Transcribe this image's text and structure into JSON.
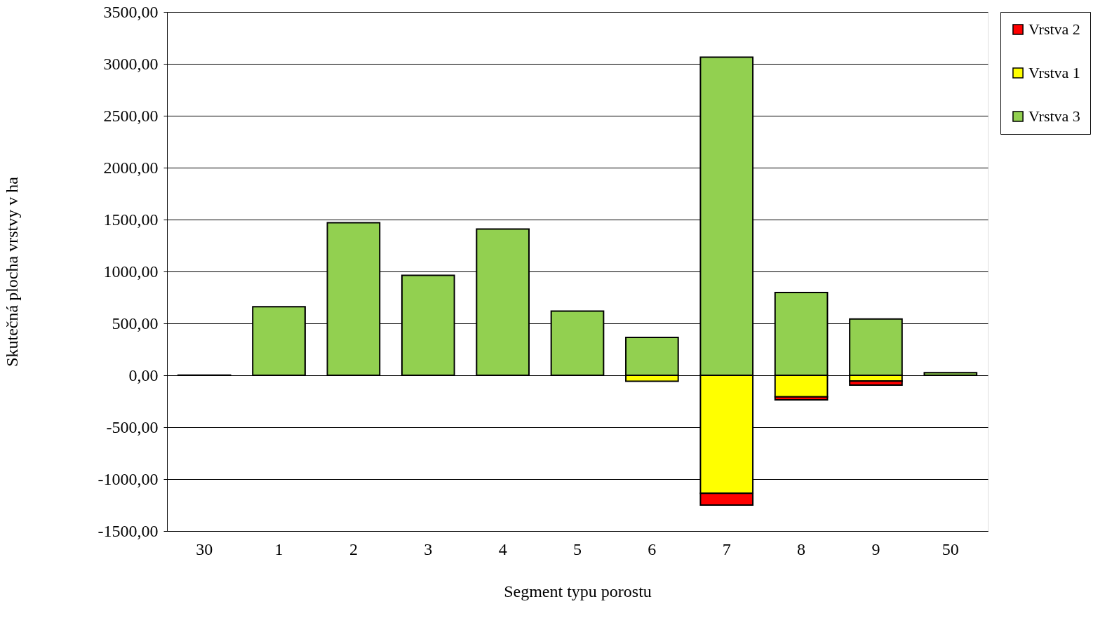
{
  "chart_data": {
    "type": "bar",
    "stacked": true,
    "xlabel": "Segment typu porostu",
    "ylabel": "Skutečná plocha vrstvy v ha",
    "categories": [
      "30",
      "1",
      "2",
      "3",
      "4",
      "5",
      "6",
      "7",
      "8",
      "9",
      "50"
    ],
    "series": [
      {
        "name": "Vrstva 3",
        "color": "#92d050",
        "values": [
          2,
          660,
          1470,
          962,
          1409,
          618,
          365,
          3065,
          797,
          542,
          25
        ]
      },
      {
        "name": "Vrstva 1",
        "color": "#ffff00",
        "values": [
          null,
          null,
          null,
          null,
          null,
          null,
          -58,
          -1137,
          -207,
          -56,
          null
        ]
      },
      {
        "name": "Vrstva 2",
        "color": "#ff0000",
        "values": [
          null,
          null,
          null,
          null,
          null,
          null,
          null,
          -113,
          -29,
          -38,
          null
        ]
      }
    ],
    "ylim": [
      -1500,
      3500
    ],
    "yticks": [
      {
        "value": -1500,
        "label": "-1500,00"
      },
      {
        "value": -1000,
        "label": "-1000,00"
      },
      {
        "value": -500,
        "label": "-500,00"
      },
      {
        "value": 0,
        "label": "0,00"
      },
      {
        "value": 500,
        "label": "500,00"
      },
      {
        "value": 1000,
        "label": "1000,00"
      },
      {
        "value": 1500,
        "label": "1500,00"
      },
      {
        "value": 2000,
        "label": "2000,00"
      },
      {
        "value": 2500,
        "label": "2500,00"
      },
      {
        "value": 3000,
        "label": "3000,00"
      },
      {
        "value": 3500,
        "label": "3500,00"
      }
    ],
    "grid": "y",
    "legend": "right"
  }
}
